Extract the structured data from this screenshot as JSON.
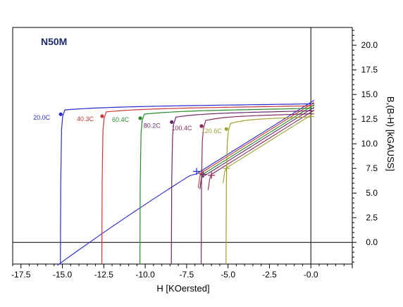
{
  "chart_data": {
    "type": "line",
    "title": "N50M",
    "xlabel": "H [KOersted]",
    "ylabel": "B,(B-H) [kGAUSS]",
    "xlim": [
      -18.0,
      2.5
    ],
    "ylim": [
      -2.2,
      21.8
    ],
    "xticks": [
      -17.5,
      -15.0,
      -12.5,
      -10.0,
      -7.5,
      -5.0,
      -2.5,
      -0.0
    ],
    "xtick_labels": [
      "-17.5",
      "-15.0",
      "-12.5",
      "-10.0",
      "-7.5",
      "-5.0",
      "-2.5",
      "-0.0"
    ],
    "yticks": [
      0.0,
      2.5,
      5.0,
      7.5,
      10.0,
      12.5,
      15.0,
      17.5,
      20.0
    ],
    "ytick_labels": [
      "0.0",
      "2.5",
      "5.0",
      "7.5",
      "10.0",
      "12.5",
      "15.0",
      "17.5",
      "20.0"
    ],
    "grid": false,
    "series": [
      {
        "name": "20.0C",
        "color": "#2a2ad0",
        "br": 14.4,
        "brs": 14.05,
        "hcj": -15.1,
        "knee_y": 13.0,
        "knee_h": -15.1,
        "cross": [
          -6.9,
          7.2
        ]
      },
      {
        "name": "40.3C",
        "color": "#c83838",
        "br": 14.2,
        "brs": 13.85,
        "hcj": -12.6,
        "knee_y": 12.8,
        "knee_h": -12.6,
        "cross": [
          -6.6,
          7.0
        ]
      },
      {
        "name": "60.4C",
        "color": "#2a8a2a",
        "br": 13.95,
        "brs": 13.6,
        "hcj": -10.3,
        "knee_y": 12.6,
        "knee_h": -10.3,
        "cross": [
          -6.5,
          6.9
        ]
      },
      {
        "name": "80.2C",
        "color": "#6a2a6a",
        "br": 13.7,
        "brs": 13.35,
        "hcj": -8.4,
        "knee_y": 12.2,
        "knee_h": -8.4,
        "cross": [
          -6.5,
          6.9
        ]
      },
      {
        "name": "100.4C",
        "color": "#8a2a5a",
        "br": 13.4,
        "brs": 13.05,
        "hcj": -6.6,
        "knee_y": 11.8,
        "knee_h": -6.6,
        "cross": [
          -6.0,
          6.8
        ]
      },
      {
        "name": "120.6C",
        "color": "#a0a030",
        "br": 13.1,
        "brs": 12.75,
        "hcj": -5.1,
        "knee_y": 11.5,
        "knee_h": -5.1,
        "cross": [
          -5.1,
          7.5
        ]
      }
    ]
  }
}
